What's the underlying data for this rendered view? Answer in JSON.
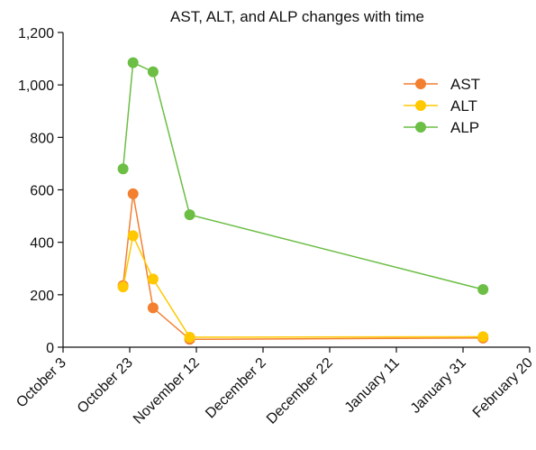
{
  "chart_data": {
    "type": "line",
    "title": "AST, ALT, and ALP changes with time",
    "xlabel": "",
    "ylabel": "",
    "x_axis": {
      "type": "date",
      "range": [
        "2022-10-03",
        "2023-02-20"
      ],
      "ticks": [
        {
          "date": "2022-10-03",
          "label": "October 3"
        },
        {
          "date": "2022-10-23",
          "label": "October 23"
        },
        {
          "date": "2022-11-12",
          "label": "November 12"
        },
        {
          "date": "2022-12-02",
          "label": "December 2"
        },
        {
          "date": "2022-12-22",
          "label": "December 22"
        },
        {
          "date": "2023-01-11",
          "label": "January 11"
        },
        {
          "date": "2023-01-31",
          "label": "January 31"
        },
        {
          "date": "2023-02-20",
          "label": "February 20"
        }
      ]
    },
    "y_axis": {
      "range": [
        0,
        1200
      ],
      "ticks": [
        0,
        200,
        400,
        600,
        800,
        1000,
        1200
      ],
      "tick_labels": [
        "0",
        "200",
        "400",
        "600",
        "800",
        "1,000",
        "1,200"
      ]
    },
    "grid": false,
    "legend": {
      "position": "top-right"
    },
    "series": [
      {
        "name": "AST",
        "color": "#F28030",
        "points": [
          {
            "x": "2022-10-21",
            "y": 235
          },
          {
            "x": "2022-10-24",
            "y": 585
          },
          {
            "x": "2022-10-30",
            "y": 150
          },
          {
            "x": "2022-11-10",
            "y": 30
          },
          {
            "x": "2023-02-06",
            "y": 35
          }
        ]
      },
      {
        "name": "ALT",
        "color": "#FFC800",
        "points": [
          {
            "x": "2022-10-21",
            "y": 230
          },
          {
            "x": "2022-10-24",
            "y": 425
          },
          {
            "x": "2022-10-30",
            "y": 260
          },
          {
            "x": "2022-11-10",
            "y": 38
          },
          {
            "x": "2023-02-06",
            "y": 40
          }
        ]
      },
      {
        "name": "ALP",
        "color": "#6CBE45",
        "points": [
          {
            "x": "2022-10-21",
            "y": 680
          },
          {
            "x": "2022-10-24",
            "y": 1085
          },
          {
            "x": "2022-10-30",
            "y": 1050
          },
          {
            "x": "2022-11-10",
            "y": 505
          },
          {
            "x": "2023-02-06",
            "y": 220
          }
        ]
      }
    ]
  }
}
